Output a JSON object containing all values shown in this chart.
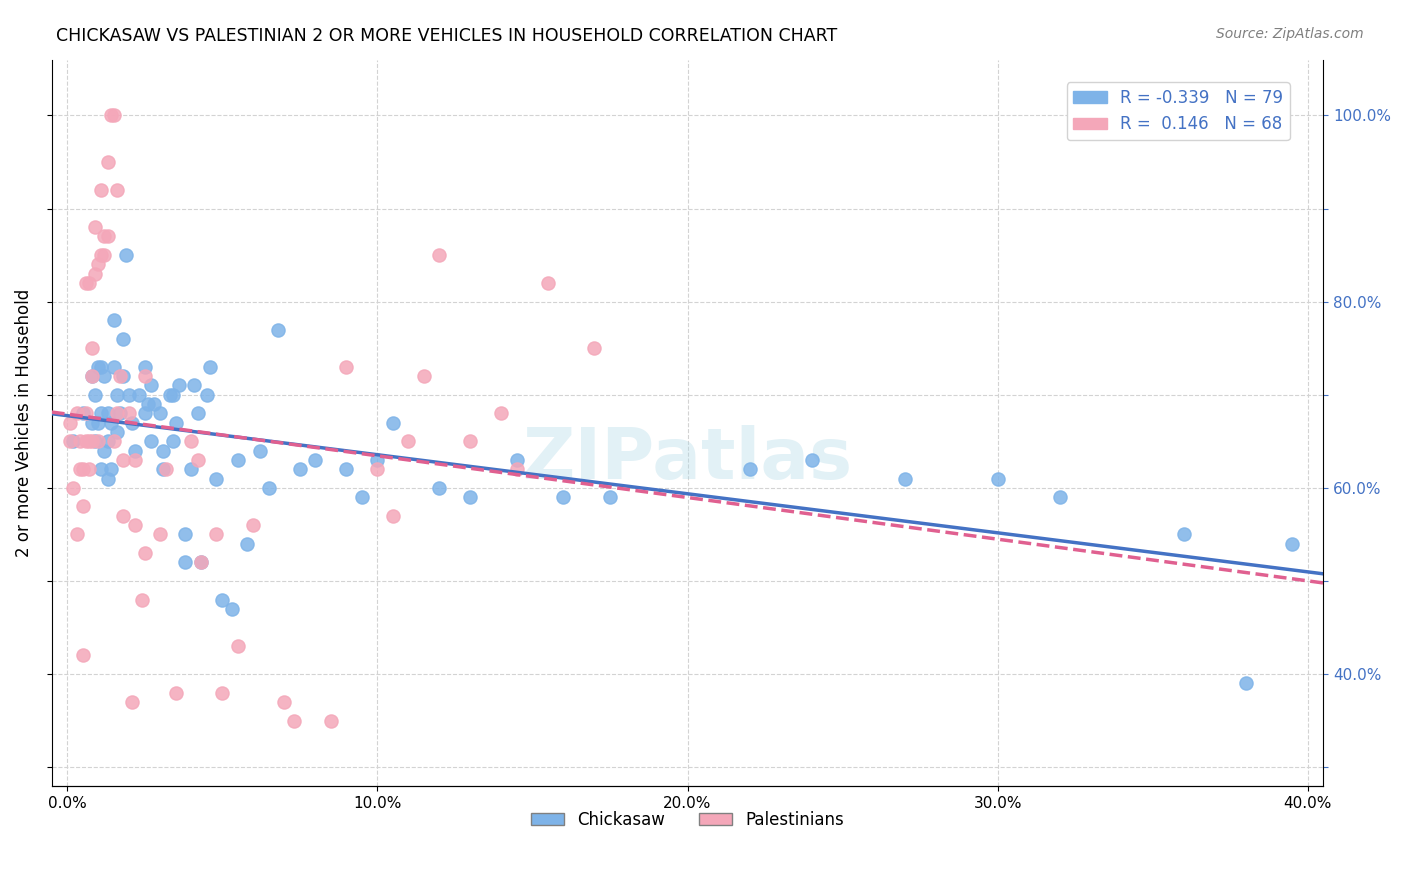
{
  "title": "CHICKASAW VS PALESTINIAN 2 OR MORE VEHICLES IN HOUSEHOLD CORRELATION CHART",
  "source": "Source: ZipAtlas.com",
  "ylabel": "2 or more Vehicles in Household",
  "xlim": [
    -0.005,
    0.405
  ],
  "ylim": [
    0.28,
    1.06
  ],
  "chickasaw_color": "#7eb3e8",
  "palestinian_color": "#f4a7b9",
  "chickasaw_line_color": "#4472c4",
  "palestinian_line_color": "#e06090",
  "R_chickasaw": -0.339,
  "N_chickasaw": 79,
  "R_palestinian": 0.146,
  "N_palestinian": 68,
  "legend_label_1": "Chickasaw",
  "legend_label_2": "Palestinians",
  "watermark": "ZIPatlas",
  "chickasaw_x": [
    0.002,
    0.005,
    0.008,
    0.008,
    0.009,
    0.009,
    0.01,
    0.01,
    0.011,
    0.011,
    0.011,
    0.012,
    0.012,
    0.013,
    0.013,
    0.013,
    0.014,
    0.014,
    0.015,
    0.015,
    0.016,
    0.016,
    0.017,
    0.018,
    0.018,
    0.019,
    0.02,
    0.021,
    0.022,
    0.023,
    0.025,
    0.025,
    0.026,
    0.027,
    0.027,
    0.028,
    0.03,
    0.031,
    0.031,
    0.033,
    0.034,
    0.034,
    0.035,
    0.036,
    0.038,
    0.038,
    0.04,
    0.041,
    0.042,
    0.043,
    0.045,
    0.046,
    0.048,
    0.05,
    0.053,
    0.055,
    0.058,
    0.062,
    0.065,
    0.068,
    0.075,
    0.08,
    0.09,
    0.095,
    0.1,
    0.105,
    0.12,
    0.13,
    0.145,
    0.16,
    0.175,
    0.22,
    0.24,
    0.27,
    0.3,
    0.32,
    0.36,
    0.38,
    0.395
  ],
  "chickasaw_y": [
    0.65,
    0.68,
    0.72,
    0.67,
    0.65,
    0.7,
    0.67,
    0.73,
    0.62,
    0.68,
    0.73,
    0.64,
    0.72,
    0.61,
    0.65,
    0.68,
    0.62,
    0.67,
    0.73,
    0.78,
    0.66,
    0.7,
    0.68,
    0.72,
    0.76,
    0.85,
    0.7,
    0.67,
    0.64,
    0.7,
    0.68,
    0.73,
    0.69,
    0.71,
    0.65,
    0.69,
    0.68,
    0.62,
    0.64,
    0.7,
    0.65,
    0.7,
    0.67,
    0.71,
    0.52,
    0.55,
    0.62,
    0.71,
    0.68,
    0.52,
    0.7,
    0.73,
    0.61,
    0.48,
    0.47,
    0.63,
    0.54,
    0.64,
    0.6,
    0.77,
    0.62,
    0.63,
    0.62,
    0.59,
    0.63,
    0.67,
    0.6,
    0.59,
    0.63,
    0.59,
    0.59,
    0.62,
    0.63,
    0.61,
    0.61,
    0.59,
    0.55,
    0.39,
    0.54
  ],
  "palestinian_x": [
    0.001,
    0.001,
    0.002,
    0.003,
    0.003,
    0.004,
    0.004,
    0.005,
    0.005,
    0.005,
    0.006,
    0.006,
    0.006,
    0.007,
    0.007,
    0.007,
    0.008,
    0.008,
    0.008,
    0.009,
    0.009,
    0.01,
    0.01,
    0.011,
    0.011,
    0.012,
    0.012,
    0.013,
    0.013,
    0.014,
    0.015,
    0.015,
    0.016,
    0.016,
    0.017,
    0.018,
    0.018,
    0.02,
    0.021,
    0.022,
    0.022,
    0.024,
    0.025,
    0.025,
    0.03,
    0.032,
    0.035,
    0.04,
    0.042,
    0.043,
    0.048,
    0.05,
    0.055,
    0.06,
    0.07,
    0.073,
    0.085,
    0.09,
    0.1,
    0.105,
    0.11,
    0.115,
    0.12,
    0.13,
    0.14,
    0.145,
    0.155,
    0.17
  ],
  "palestinian_y": [
    0.65,
    0.67,
    0.6,
    0.55,
    0.68,
    0.62,
    0.65,
    0.42,
    0.58,
    0.62,
    0.65,
    0.68,
    0.82,
    0.62,
    0.65,
    0.82,
    0.65,
    0.72,
    0.75,
    0.83,
    0.88,
    0.84,
    0.65,
    0.85,
    0.92,
    0.85,
    0.87,
    0.87,
    0.95,
    1.0,
    1.0,
    0.65,
    0.68,
    0.92,
    0.72,
    0.57,
    0.63,
    0.68,
    0.37,
    0.63,
    0.56,
    0.48,
    0.53,
    0.72,
    0.55,
    0.62,
    0.38,
    0.65,
    0.63,
    0.52,
    0.55,
    0.38,
    0.43,
    0.56,
    0.37,
    0.35,
    0.35,
    0.73,
    0.62,
    0.57,
    0.65,
    0.72,
    0.85,
    0.65,
    0.68,
    0.62,
    0.82,
    0.75
  ]
}
